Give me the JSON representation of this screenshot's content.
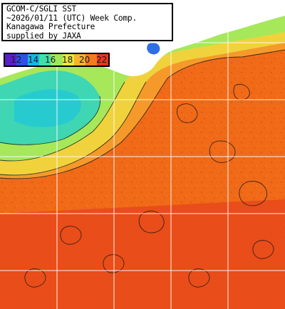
{
  "header": {
    "line1": "GCOM-C/SGLI SST",
    "line2": "~2026/01/11 (UTC) Week Comp.",
    "line3": "Kanagawa Prefecture",
    "line4": "supplied by JAXA"
  },
  "legend": {
    "labels": [
      "12",
      "14",
      "16",
      "18",
      "20",
      "22"
    ],
    "colors": [
      "#5a1fc8",
      "#2f4fe6",
      "#14b6e8",
      "#3ee0a8",
      "#9fe85a",
      "#e8e83a",
      "#f7b32a",
      "#f57a1e",
      "#e8361c"
    ]
  },
  "map": {
    "land_color": "#ffffff",
    "sea_colors": {
      "cold": "#3fd6b4",
      "cool": "#8ee66a",
      "mild": "#f0d33c",
      "warm": "#f59a2a",
      "hot": "#f06a18"
    }
  }
}
